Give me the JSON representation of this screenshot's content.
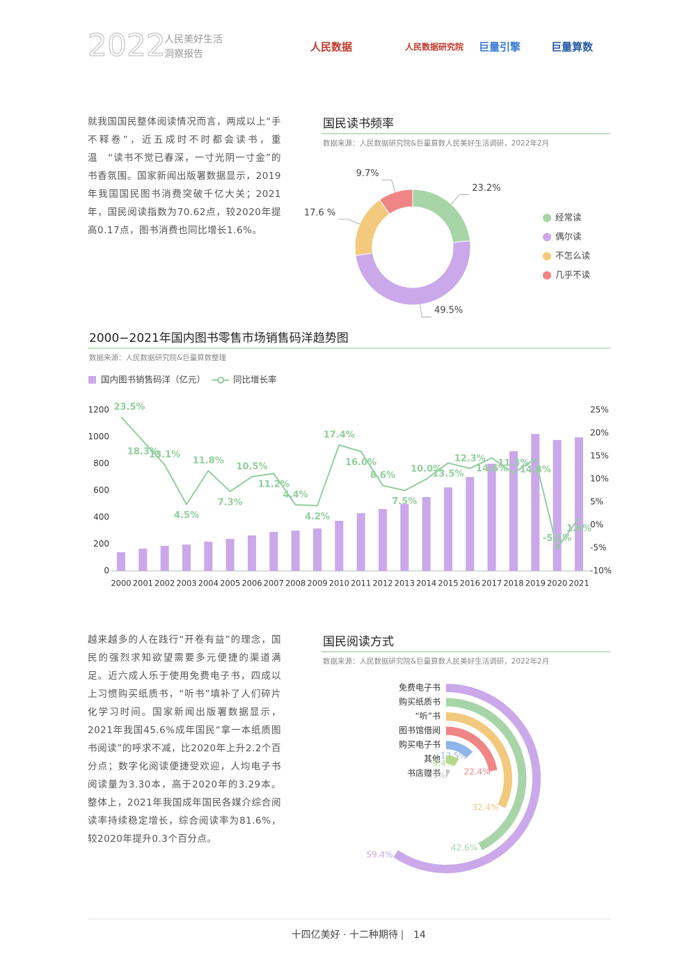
{
  "header": {
    "year": "2022",
    "title_lines": [
      "人民美好生活",
      "洞察报告"
    ],
    "logos": [
      "人民数据",
      "人民数据研究院",
      "巨量引擎",
      "巨量算数"
    ]
  },
  "paragraphs": [
    "就我国国民整体阅读情况而言，两成以上“手不释卷”，近五成时不时都会读书，重温　“读书不觉已春深，一寸光阴一寸金”的书香氛围。国家新闻出版署数据显示，2019年我国国民图书消费突破千亿大关；2021年，国民阅读指数为70.62点，较2020年提高0.17点，图书消费也同比增长1.6%。",
    "越来越多的人在践行“开卷有益”的理念，国民的强烈求知欲望需要多元便捷的渠道满足。近六成人乐于使用免费电子书，四成以上习惯购买纸质书，“听书”填补了人们碎片化学习时间。国家新闻出版署数据显示，2021年我国45.6%成年国民“拿一本纸质图书阅读”的呼求不减，比2020年上升2.2个百分点；数字化阅读便捷受欢迎，人均电子书阅读量为3.30本，高于2020年的3.29本。整体上，2021年我国成年国民各媒介综合阅读率持续稳定增长，综合阅读率为81.6%，较2020年提升0.3个百分点。"
  ],
  "chart_data": [
    {
      "type": "donut",
      "title": "国民读书频率",
      "source": "数据来源：人民数据研究院&巨量算数人民美好生活调研，2022年2月",
      "categories": [
        "经常读",
        "偶尔读",
        "不怎么读",
        "几乎不读"
      ],
      "values": [
        23.2,
        49.5,
        17.6,
        9.7
      ],
      "value_labels": [
        "23.2%",
        "49.5%",
        "17.6 %",
        "9.7%"
      ],
      "colors": [
        "#a8d5a8",
        "#caa8ea",
        "#f2c97d",
        "#f08585"
      ],
      "legend": "right"
    },
    {
      "type": "combo",
      "title": "2000−2021年国内图书零售市场销售码洋趋势图",
      "source": "数据来源：人民数据研究院&巨量算数整理",
      "categories": [
        "2000",
        "2001",
        "2002",
        "2003",
        "2004",
        "2005",
        "2006",
        "2007",
        "2008",
        "2009",
        "2010",
        "2011",
        "2012",
        "2013",
        "2014",
        "2015",
        "2016",
        "2017",
        "2018",
        "2019",
        "2020",
        "2021"
      ],
      "series": [
        {
          "name": "国内图书销售码洋（亿元）",
          "color": "#caa8ea",
          "type": "bar",
          "values": [
            140,
            166,
            187,
            197,
            218,
            239,
            265,
            291,
            301,
            317,
            374,
            431,
            462,
            499,
            551,
            623,
            701,
            800,
            894,
            1022,
            977,
            997
          ]
        },
        {
          "name": "同比增长率",
          "color": "#90cf9c",
          "type": "line",
          "axis": "y2",
          "values": [
            23.5,
            18.3,
            13.1,
            4.5,
            11.8,
            7.3,
            10.5,
            11.2,
            4.4,
            4.2,
            17.4,
            16.0,
            8.6,
            7.5,
            10.0,
            13.5,
            12.3,
            14.6,
            11.3,
            14.4,
            -5.1,
            1.6
          ],
          "value_labels": [
            "23.5%",
            "18.3%",
            "13.1%",
            "4.5%",
            "11.8%",
            "7.3%",
            "10.5%",
            "11.2%",
            "4.4%",
            "4.2%",
            "17.4%",
            "16.0%",
            "8.6%",
            "7.5%",
            "10.0%",
            "13.5%",
            "12.3%",
            "14.6%",
            "11.3%",
            "14.4%",
            "-5.1%",
            "1.6%"
          ]
        }
      ],
      "ylim": [
        0,
        1200
      ],
      "yticks": [
        0,
        200,
        400,
        600,
        800,
        1000,
        1200
      ],
      "y2lim": [
        -10,
        25
      ],
      "y2ticks": [
        {
          "value": -10,
          "label": "-10%"
        },
        {
          "value": -5,
          "label": "-5%"
        },
        {
          "value": 0,
          "label": "0%"
        },
        {
          "value": 5,
          "label": "5%"
        },
        {
          "value": 10,
          "label": "10%"
        },
        {
          "value": 15,
          "label": "15%"
        },
        {
          "value": 20,
          "label": "20%"
        },
        {
          "value": 25,
          "label": "25%"
        }
      ],
      "grid": false,
      "legend": "top-left"
    },
    {
      "type": "radial_bar",
      "title": "国民阅读方式",
      "source": "数据来源：人民数据研究院&巨量算数人民美好生活调研，2022年2月",
      "categories": [
        "免费电子书",
        "购买纸质书",
        "“听”书",
        "图书馆借阅",
        "购买电子书",
        "其他",
        "书店赠书"
      ],
      "values": [
        59.4,
        42.6,
        32.4,
        22.4,
        12.5,
        9.4,
        7.9
      ],
      "value_labels": [
        "59.4%",
        "42.6%",
        "32.4%",
        "22.4%",
        "12.5%",
        "9.4%",
        "7.9%"
      ],
      "colors": [
        "#caa8ea",
        "#a8d5a8",
        "#f2c97d",
        "#f08585",
        "#8fb5ea",
        "#b5d98a",
        "#c8c8c8"
      ]
    }
  ],
  "footer": {
    "slogan": "十四亿美好 · 十二种期待",
    "page": "14"
  }
}
